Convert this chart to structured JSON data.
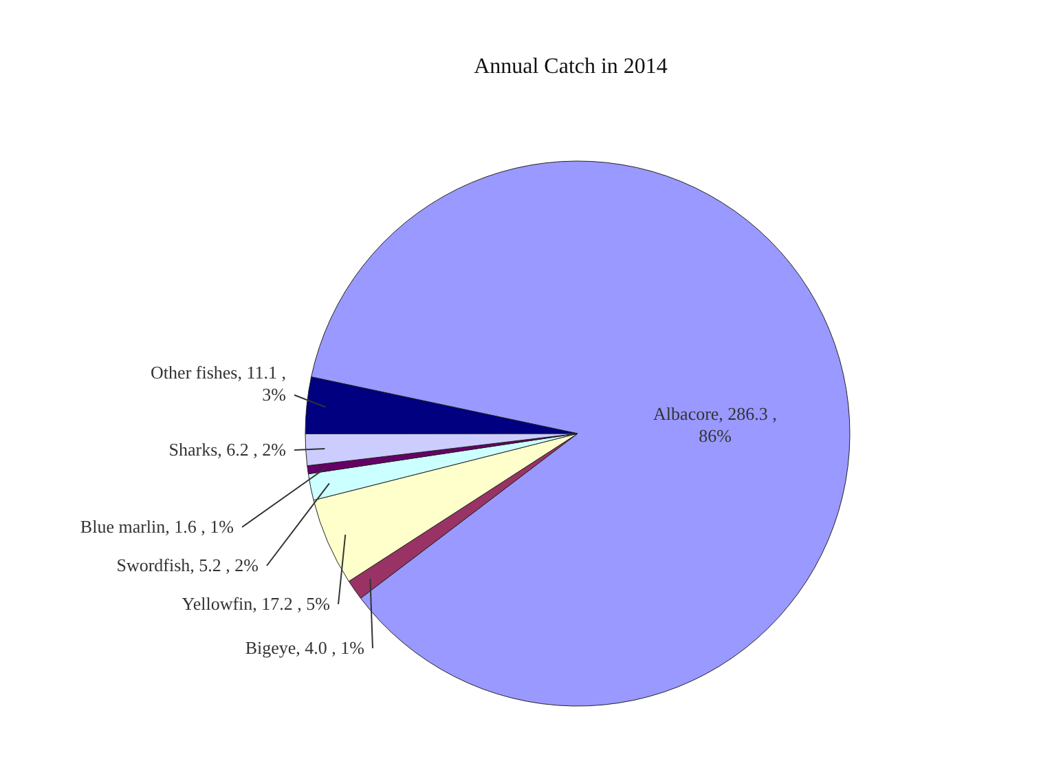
{
  "chart_data": {
    "type": "pie",
    "title": "Annual Catch in 2014",
    "categories": [
      "Albacore",
      "Bigeye",
      "Yellowfin",
      "Swordfish",
      "Blue marlin",
      "Sharks",
      "Other fishes"
    ],
    "values": [
      286.3,
      4.0,
      17.2,
      5.2,
      1.6,
      6.2,
      11.1
    ],
    "colors": [
      "#9999ff",
      "#993366",
      "#ffffcc",
      "#ccffff",
      "#660066",
      "#ccccff",
      "#000080"
    ],
    "value_labels": [
      "286.3 , 86%",
      "4.0 , 1%",
      "17.2 , 5%",
      "5.2 , 2%",
      "1.6 , 1%",
      "6.2 , 2%",
      "11.1 , 3%"
    ],
    "legend": false
  }
}
